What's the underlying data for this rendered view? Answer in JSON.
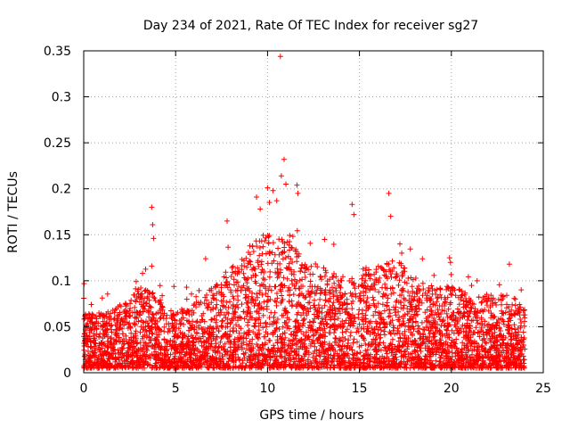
{
  "chart_data": {
    "type": "scatter",
    "title": "Day 234 of 2021, Rate Of TEC Index for receiver sg27",
    "xlabel": "GPS time / hours",
    "ylabel": "ROTI / TECUs",
    "xlim": [
      0,
      25
    ],
    "ylim": [
      0,
      0.35
    ],
    "xticks": [
      0,
      5,
      10,
      15,
      20,
      25
    ],
    "xtick_labels": [
      "0",
      "5",
      "10",
      "15",
      "20",
      "25"
    ],
    "yticks": [
      0,
      0.05,
      0.1,
      0.15,
      0.2,
      0.25,
      0.3,
      0.35
    ],
    "ytick_labels": [
      "0",
      "0.05",
      "0.1",
      "0.15",
      "0.2",
      "0.25",
      "0.3",
      "0.35"
    ],
    "grid": true,
    "marker": "+",
    "color": "#ff0000",
    "series": [
      {
        "name": "ROTI",
        "envelope": {
          "hours": [
            0,
            1,
            2,
            3,
            4,
            5,
            6,
            7,
            8,
            9,
            10,
            11,
            12,
            13,
            14,
            15,
            16,
            17,
            18,
            19,
            20,
            21,
            22,
            23,
            24
          ],
          "typical_max": [
            0.06,
            0.06,
            0.07,
            0.09,
            0.08,
            0.06,
            0.07,
            0.09,
            0.11,
            0.13,
            0.15,
            0.14,
            0.12,
            0.11,
            0.1,
            0.11,
            0.11,
            0.12,
            0.1,
            0.09,
            0.09,
            0.08,
            0.08,
            0.08,
            0.07
          ]
        },
        "outliers": [
          [
            0.0,
            0.081
          ],
          [
            3.2,
            0.108
          ],
          [
            3.7,
            0.18
          ],
          [
            3.75,
            0.161
          ],
          [
            3.8,
            0.146
          ],
          [
            3.7,
            0.116
          ],
          [
            5.6,
            0.093
          ],
          [
            7.8,
            0.165
          ],
          [
            9.4,
            0.191
          ],
          [
            9.6,
            0.178
          ],
          [
            10.0,
            0.201
          ],
          [
            10.1,
            0.185
          ],
          [
            10.3,
            0.198
          ],
          [
            10.5,
            0.187
          ],
          [
            10.7,
            0.344
          ],
          [
            10.75,
            0.214
          ],
          [
            10.9,
            0.232
          ],
          [
            11.0,
            0.205
          ],
          [
            11.6,
            0.204
          ],
          [
            11.65,
            0.195
          ],
          [
            13.1,
            0.145
          ],
          [
            14.6,
            0.183
          ],
          [
            14.7,
            0.172
          ],
          [
            16.6,
            0.195
          ],
          [
            16.7,
            0.17
          ],
          [
            17.2,
            0.14
          ],
          [
            17.3,
            0.13
          ],
          [
            19.9,
            0.125
          ],
          [
            19.95,
            0.12
          ],
          [
            21.4,
            0.1
          ],
          [
            23.8,
            0.09
          ]
        ]
      }
    ]
  }
}
